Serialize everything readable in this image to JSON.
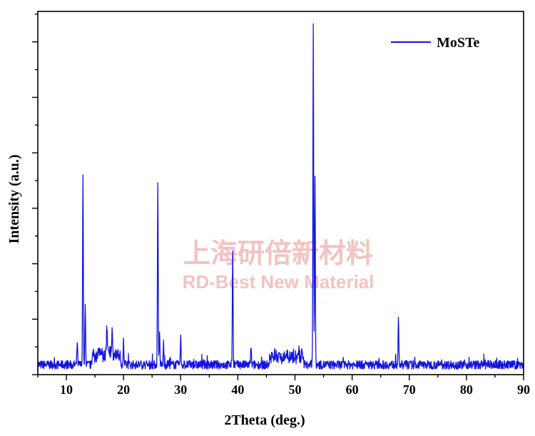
{
  "watermark": {
    "line1": "上海研倍新材料",
    "line2": "RD-Best New Material"
  },
  "chart_data": {
    "type": "line",
    "xlabel": "2Theta (deg.)",
    "ylabel": "Intensity (a.u.)",
    "xlim": [
      5,
      90
    ],
    "ylim": [
      0,
      100
    ],
    "xticks": [
      10,
      20,
      30,
      40,
      50,
      60,
      70,
      80,
      90
    ],
    "x_minor_step": 5,
    "yticks_major": 6,
    "yticks_minor_between": 1,
    "y_tick_labels": false,
    "grid": false,
    "legend_position": "top-right",
    "series": [
      {
        "name": "MoSTe",
        "color": "#1515e0",
        "baseline": 1.5,
        "noise": 1.2,
        "peaks": [
          {
            "x": 11.9,
            "y": 6.5
          },
          {
            "x": 12.9,
            "y": 53
          },
          {
            "x": 13.3,
            "y": 16
          },
          {
            "x": 17.1,
            "y": 7
          },
          {
            "x": 18.0,
            "y": 7.5
          },
          {
            "x": 20.0,
            "y": 6.5
          },
          {
            "x": 26.0,
            "y": 51
          },
          {
            "x": 26.3,
            "y": 9
          },
          {
            "x": 27.0,
            "y": 6
          },
          {
            "x": 30.0,
            "y": 7.5
          },
          {
            "x": 39.1,
            "y": 32
          },
          {
            "x": 42.3,
            "y": 5
          },
          {
            "x": 53.2,
            "y": 95
          },
          {
            "x": 53.5,
            "y": 52
          },
          {
            "x": 68.1,
            "y": 12.5
          }
        ],
        "humps": [
          {
            "from": 14.5,
            "to": 19.5,
            "y": 3.2
          },
          {
            "from": 45.5,
            "to": 51.5,
            "y": 2.4
          }
        ]
      }
    ]
  }
}
